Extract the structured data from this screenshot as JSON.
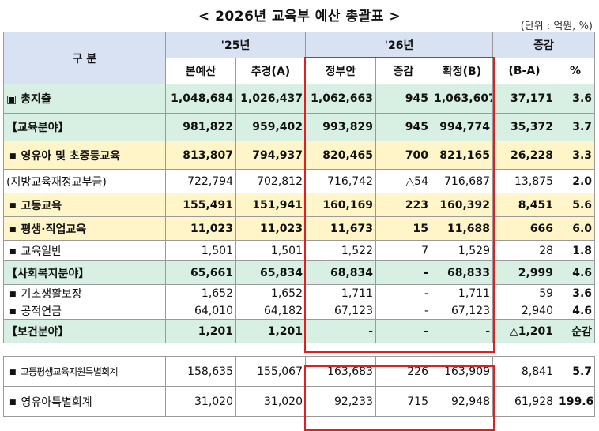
{
  "title": "< 2026년 교육부 예산 총괄표 >",
  "unit": "(단위 : 억원, %)",
  "headers": {
    "category": "구 분",
    "y25": "'25년",
    "y26": "'26년",
    "change": "증감",
    "original": "본예산",
    "supplementary": "추경(A)",
    "govt_draft": "정부안",
    "increase": "증감",
    "final": "확정(B)",
    "ba": "(B-A)",
    "percent": "%"
  },
  "rows": [
    {
      "label": "▣ 총지출",
      "original": "1,048,684",
      "supp": "1,026,437",
      "draft": "1,062,663",
      "inc": "945",
      "final": "1,063,607",
      "diff": "37,171",
      "pct": "3.6"
    },
    {
      "label": "【교육분야】",
      "original": "981,822",
      "supp": "959,402",
      "draft": "993,829",
      "inc": "945",
      "final": "994,774",
      "diff": "35,372",
      "pct": "3.7"
    },
    {
      "label": "영유아 및 초중등교육",
      "original": "813,807",
      "supp": "794,937",
      "draft": "820,465",
      "inc": "700",
      "final": "821,165",
      "diff": "26,228",
      "pct": "3.3"
    },
    {
      "label": "(지방교육재정교부금)",
      "original": "722,794",
      "supp": "702,812",
      "draft": "716,742",
      "inc": "△54",
      "final": "716,687",
      "diff": "13,875",
      "pct": "2.0"
    },
    {
      "label": "고등교육",
      "original": "155,491",
      "supp": "151,941",
      "draft": "160,169",
      "inc": "223",
      "final": "160,392",
      "diff": "8,451",
      "pct": "5.6"
    },
    {
      "label": "평생·직업교육",
      "original": "11,023",
      "supp": "11,023",
      "draft": "11,673",
      "inc": "15",
      "final": "11,688",
      "diff": "666",
      "pct": "6.0"
    },
    {
      "label": "교육일반",
      "original": "1,501",
      "supp": "1,501",
      "draft": "1,522",
      "inc": "7",
      "final": "1,529",
      "diff": "28",
      "pct": "1.8"
    },
    {
      "label": "【사회복지분야】",
      "original": "65,661",
      "supp": "65,834",
      "draft": "68,834",
      "inc": "-",
      "final": "68,833",
      "diff": "2,999",
      "pct": "4.6"
    },
    {
      "label": "기초생활보장",
      "original": "1,652",
      "supp": "1,652",
      "draft": "1,711",
      "inc": "-",
      "final": "1,711",
      "diff": "59",
      "pct": "3.6"
    },
    {
      "label": "공적연금",
      "original": "64,010",
      "supp": "64,182",
      "draft": "67,123",
      "inc": "-",
      "final": "67,123",
      "diff": "2,940",
      "pct": "4.6"
    },
    {
      "label": "【보건분야】",
      "original": "1,201",
      "supp": "1,201",
      "draft": "-",
      "inc": "-",
      "final": "-",
      "diff": "△1,201",
      "pct": "순감"
    },
    {
      "label": "고등평생교육지원특별회계",
      "original": "158,635",
      "supp": "155,067",
      "draft": "163,683",
      "inc": "226",
      "final": "163,909",
      "diff": "8,841",
      "pct": "5.7"
    },
    {
      "label": "영유아특별회계",
      "original": "31,020",
      "supp": "31,020",
      "draft": "92,233",
      "inc": "715",
      "final": "92,948",
      "diff": "61,928",
      "pct": "199.6"
    }
  ],
  "colors": {
    "header_bg": "#d9e2f3",
    "green_bg": "#d8efe3",
    "yellow_bg": "#fff5c8",
    "highlight_border": "#e02020"
  }
}
